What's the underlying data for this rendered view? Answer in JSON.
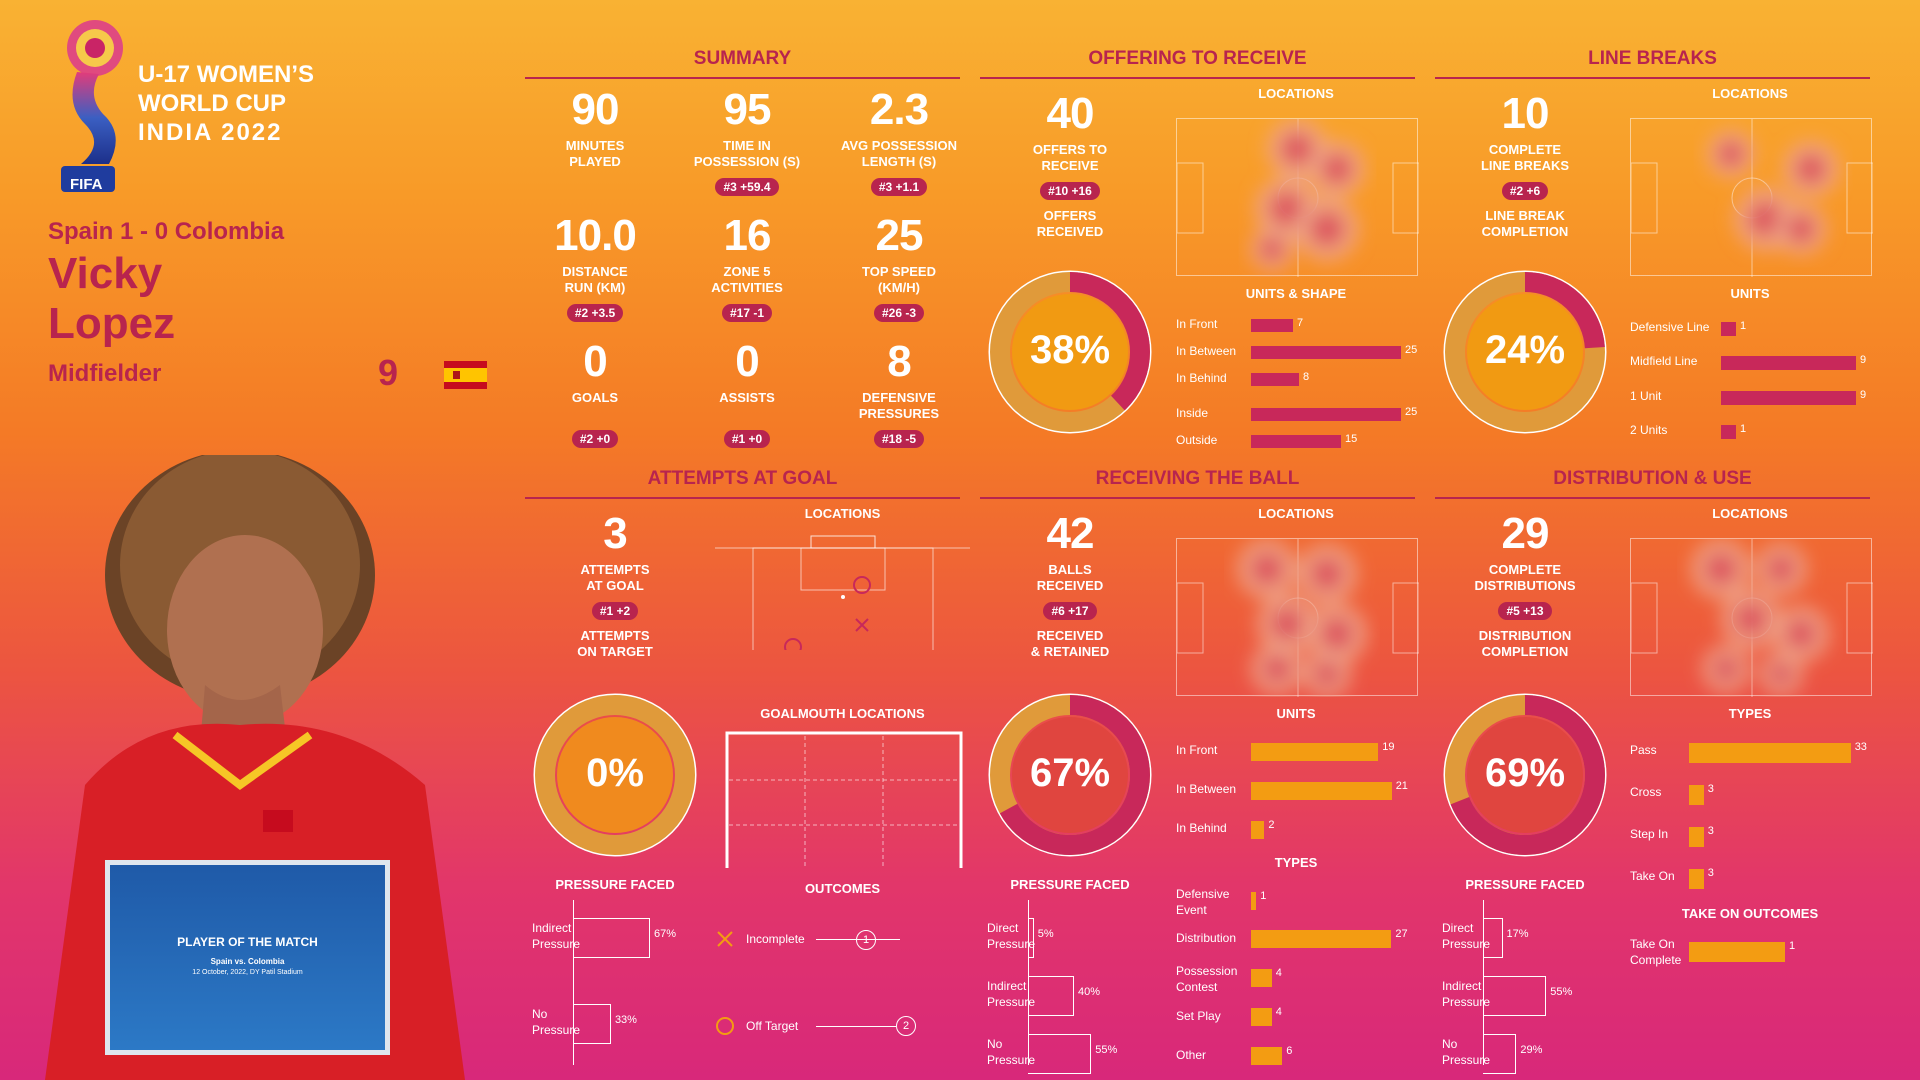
{
  "event": {
    "line1": "U-17 WOMEN’S",
    "line2": "WORLD CUP",
    "line3": "INDIA 2022",
    "fifa": "FIFA"
  },
  "player": {
    "match": "Spain 1 - 0 Colombia",
    "first": "Vicky",
    "last": "Lopez",
    "position": "Midfielder",
    "number": "9"
  },
  "card": {
    "title": "PLAYER OF THE MATCH",
    "subtitle": "Spain vs. Colombia",
    "date": "12 October, 2022, DY Patil Stadium"
  },
  "colors": {
    "accent": "#b8244e",
    "orange": "#f39c12",
    "bar_magenta": "#c8285a"
  },
  "summary": {
    "title": "SUMMARY",
    "stats": [
      {
        "value": "90",
        "label1": "MINUTES",
        "label2": "PLAYED",
        "rank": ""
      },
      {
        "value": "95",
        "label1": "TIME IN",
        "label2": "POSSESSION (s)",
        "rank": "#3 +59.4"
      },
      {
        "value": "2.3",
        "label1": "AVG POSSESSION",
        "label2": "LENGTH (s)",
        "rank": "#3 +1.1"
      },
      {
        "value": "10.0",
        "label1": "DISTANCE",
        "label2": "RUN (KM)",
        "rank": "#2 +3.5"
      },
      {
        "value": "16",
        "label1": "ZONE 5",
        "label2": "ACTIVITIES",
        "rank": "#17 -1"
      },
      {
        "value": "25",
        "label1": "TOP SPEED",
        "label2": "(KM/H)",
        "rank": "#26 -3"
      },
      {
        "value": "0",
        "label1": "GOALS",
        "label2": "",
        "rank": "#2 +0"
      },
      {
        "value": "0",
        "label1": "ASSISTS",
        "label2": "",
        "rank": "#1 +0"
      },
      {
        "value": "8",
        "label1": "DEFENSIVE",
        "label2": "PRESSURES",
        "rank": "#18 -5"
      }
    ]
  },
  "offering": {
    "title": "OFFERING TO RECEIVE",
    "value": "40",
    "label1": "OFFERS TO",
    "label2": "RECEIVE",
    "rank": "#10 +16",
    "sub1": "OFFERS",
    "sub2": "RECEIVED",
    "pct": "38%",
    "pct_value": 38,
    "locations": "LOCATIONS",
    "units_title": "UNITS & SHAPE",
    "bars": [
      {
        "label": "In Front",
        "value": 7
      },
      {
        "label": "In Between",
        "value": 25
      },
      {
        "label": "In Behind",
        "value": 8
      },
      {
        "label": "Inside",
        "value": 25
      },
      {
        "label": "Outside",
        "value": 15
      }
    ]
  },
  "linebreaks": {
    "title": "LINE BREAKS",
    "value": "10",
    "label1": "COMPLETE",
    "label2": "LINE BREAKS",
    "rank": "#2 +6",
    "sub1": "LINE BREAK",
    "sub2": "COMPLETION",
    "pct": "24%",
    "pct_value": 24,
    "locations": "LOCATIONS",
    "units_title": "UNITS",
    "bars": [
      {
        "label": "Defensive Line",
        "value": 1
      },
      {
        "label": "Midfield Line",
        "value": 9
      },
      {
        "label": "1 Unit",
        "value": 9
      },
      {
        "label": "2 Units",
        "value": 1
      }
    ]
  },
  "attempts": {
    "title": "ATTEMPTS AT GOAL",
    "value": "3",
    "label1": "ATTEMPTS",
    "label2": "AT GOAL",
    "rank": "#1 +2",
    "sub1": "ATTEMPTS",
    "sub2": "ON TARGET",
    "pct": "0%",
    "pct_value": 0,
    "locations": "LOCATIONS",
    "goalmouth": "GOALMOUTH LOCATIONS",
    "pressure_title": "PRESSURE FACED",
    "pressure": [
      {
        "label1": "Indirect",
        "label2": "Pressure",
        "pct": "67%",
        "value": 67
      },
      {
        "label1": "No",
        "label2": "Pressure",
        "pct": "33%",
        "value": 33
      }
    ],
    "outcomes_title": "OUTCOMES",
    "outcomes": [
      {
        "label": "Incomplete",
        "count": "1"
      },
      {
        "label": "Off Target",
        "count": "2"
      }
    ]
  },
  "receiving": {
    "title": "RECEIVING THE BALL",
    "value": "42",
    "label1": "BALLS",
    "label2": "RECEIVED",
    "rank": "#6 +17",
    "sub1": "RECEIVED",
    "sub2": "& RETAINED",
    "pct": "67%",
    "pct_value": 67,
    "locations": "LOCATIONS",
    "units_title": "UNITS",
    "types_title": "TYPES",
    "pressure_title": "PRESSURE FACED",
    "pressure": [
      {
        "label1": "Direct",
        "label2": "Pressure",
        "pct": "5%",
        "value": 5
      },
      {
        "label1": "Indirect",
        "label2": "Pressure",
        "pct": "40%",
        "value": 40
      },
      {
        "label1": "No",
        "label2": "Pressure",
        "pct": "55%",
        "value": 55
      }
    ],
    "units": [
      {
        "label": "In Front",
        "value": 19
      },
      {
        "label": "In Between",
        "value": 21
      },
      {
        "label": "In Behind",
        "value": 2
      }
    ],
    "types": [
      {
        "label1": "Defensive",
        "label2": "Event",
        "value": 1
      },
      {
        "label1": "Distribution",
        "label2": "",
        "value": 27
      },
      {
        "label1": "Possession",
        "label2": "Contest",
        "value": 4
      },
      {
        "label1": "Set Play",
        "label2": "",
        "value": 4
      },
      {
        "label1": "Other",
        "label2": "",
        "value": 6
      }
    ]
  },
  "distribution": {
    "title": "DISTRIBUTION & USE",
    "value": "29",
    "label1": "COMPLETE",
    "label2": "DISTRIBUTIONS",
    "rank": "#5 +13",
    "sub1": "DISTRIBUTION",
    "sub2": "COMPLETION",
    "pct": "69%",
    "pct_value": 69,
    "locations": "LOCATIONS",
    "types_title": "TYPES",
    "pressure_title": "PRESSURE FACED",
    "pressure": [
      {
        "label1": "Direct",
        "label2": "Pressure",
        "pct": "17%",
        "value": 17
      },
      {
        "label1": "Indirect",
        "label2": "Pressure",
        "pct": "55%",
        "value": 55
      },
      {
        "label1": "No",
        "label2": "Pressure",
        "pct": "29%",
        "value": 29
      }
    ],
    "types": [
      {
        "label": "Pass",
        "value": 33
      },
      {
        "label": "Cross",
        "value": 3
      },
      {
        "label": "Step In",
        "value": 3
      },
      {
        "label": "Take On",
        "value": 3
      }
    ],
    "takeon_title": "TAKE ON OUTCOMES",
    "takeon": {
      "label1": "Take On",
      "label2": "Complete",
      "value": 1
    }
  }
}
